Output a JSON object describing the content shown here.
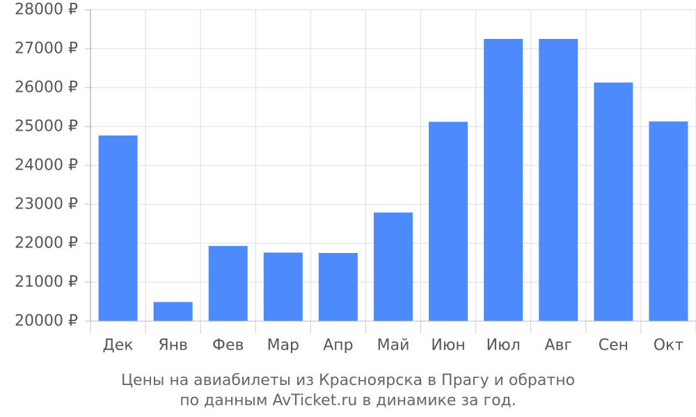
{
  "chart_data": {
    "type": "bar",
    "categories": [
      "Дек",
      "Янв",
      "Фев",
      "Мар",
      "Апр",
      "Май",
      "Июн",
      "Июл",
      "Авг",
      "Сен",
      "Окт"
    ],
    "values": [
      24770,
      20490,
      21930,
      21760,
      21750,
      22790,
      25120,
      27250,
      27250,
      26130,
      25130
    ],
    "ylim": [
      20000,
      28000
    ],
    "y_ticks": [
      20000,
      21000,
      22000,
      23000,
      24000,
      25000,
      26000,
      27000,
      28000
    ],
    "y_tick_labels": [
      "20000 ₽",
      "21000 ₽",
      "22000 ₽",
      "23000 ₽",
      "24000 ₽",
      "25000 ₽",
      "26000 ₽",
      "27000 ₽",
      "28000 ₽"
    ],
    "grid": true,
    "bar_color": "#4d8afc",
    "caption_line1": "Цены на авиабилеты из Красноярска в Прагу и обратно",
    "caption_line2": "по данным AvTicket.ru в динамике за год."
  }
}
